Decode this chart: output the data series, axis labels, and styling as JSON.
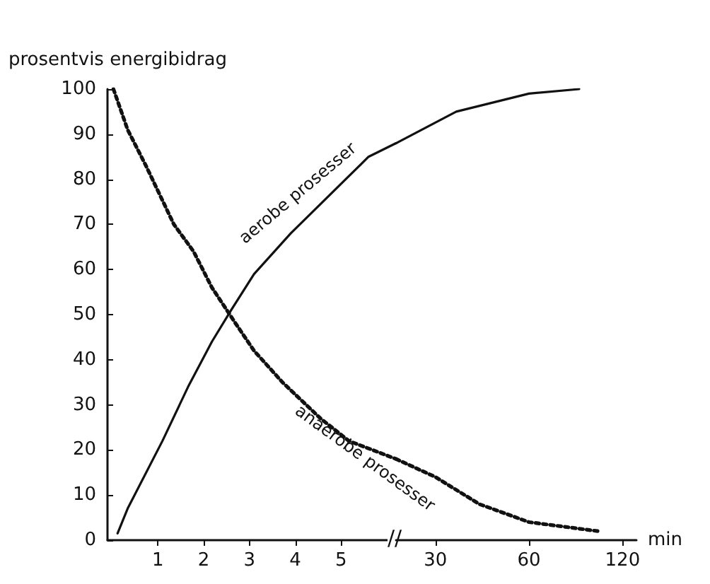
{
  "chart_data": [
    {
      "type": "line",
      "ylabel": "prosentvis energibidrag",
      "xlim": [
        -0.1,
        6.2
      ],
      "ylim": [
        0,
        100
      ],
      "xticks": [
        1,
        2,
        3,
        4,
        5
      ],
      "yticks": [
        0,
        10,
        20,
        30,
        40,
        50,
        60,
        70,
        80,
        90,
        100
      ],
      "grid": false,
      "legend": false,
      "series": [
        {
          "name": "aerobe prosesser",
          "color": "#111111",
          "line_style": "solid",
          "x": [
            0.12,
            0.34,
            1.1,
            1.66,
            2.18,
            2.6,
            3.1,
            3.9,
            4.7,
            5.6,
            6.2
          ],
          "values": [
            1.5,
            7,
            22,
            34,
            44,
            51,
            59,
            68,
            76,
            85,
            88
          ]
        },
        {
          "name": "anaerobe prosesser",
          "color": "#111111",
          "line_style": "dotted",
          "x": [
            0.03,
            0.34,
            0.74,
            1.35,
            1.78,
            2.18,
            2.7,
            3.1,
            3.72,
            4.55,
            5.17,
            6.2
          ],
          "values": [
            100,
            91,
            83,
            70,
            64,
            56,
            48,
            42,
            35,
            27,
            22,
            18
          ]
        }
      ]
    },
    {
      "type": "line",
      "xlabel": "min",
      "annotations": [
        "//"
      ],
      "xlim": [
        22.4,
        133
      ],
      "ylim": [
        0,
        100
      ],
      "log": "x",
      "xticks": [
        30,
        60,
        120
      ],
      "tick_labels": "x",
      "grid": false,
      "legend": false,
      "series": [
        {
          "color": "#111111",
          "line_style": "solid",
          "x": [
            22.4,
            35,
            60,
            87
          ],
          "values": [
            88,
            95,
            99,
            100
          ]
        },
        {
          "color": "#111111",
          "line_style": "dotted",
          "x": [
            22.4,
            30,
            41.5,
            60,
            100
          ],
          "values": [
            18,
            14,
            8,
            4,
            2
          ]
        }
      ]
    }
  ]
}
